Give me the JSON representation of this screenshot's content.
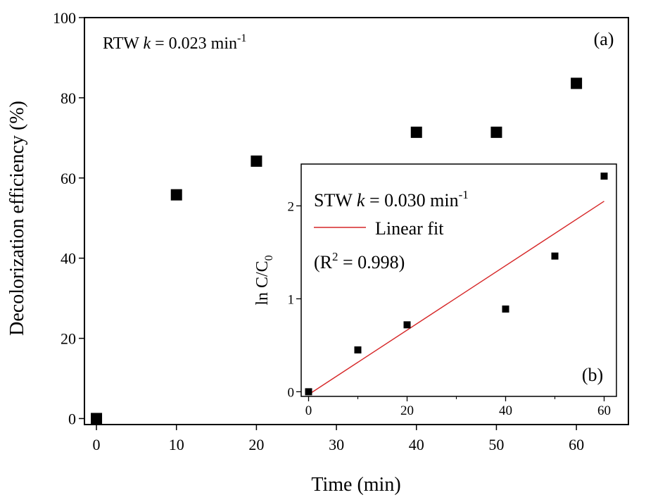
{
  "chart_data": [
    {
      "panel": "(a)",
      "type": "scatter",
      "xlabel": "Time (min)",
      "ylabel": "Decolorization efficiency (%)",
      "xlim": [
        -1.5,
        66.5
      ],
      "ylim": [
        -1.5,
        100
      ],
      "xticks": [
        0,
        10,
        20,
        30,
        40,
        50,
        60
      ],
      "yticks": [
        0,
        20,
        40,
        60,
        80,
        100
      ],
      "annotation": {
        "prefix": "RTW ",
        "k": "k",
        "value": " = 0.023 min",
        "sup": "-1"
      },
      "series": [
        {
          "x": [
            0,
            10,
            20,
            40,
            50,
            60
          ],
          "y": [
            0,
            55.8,
            64.2,
            71.4,
            71.4,
            83.6
          ]
        }
      ],
      "marker_color": "#000000",
      "grid": false
    },
    {
      "panel": "(b)",
      "type": "scatter",
      "ylabel": "ln C/C",
      "ylabel_sub": "0",
      "xlim": [
        -1.5,
        62.5
      ],
      "ylim": [
        -0.05,
        2.45
      ],
      "xticks": [
        0,
        20,
        40,
        60
      ],
      "xtick_labels": [
        "0",
        "20",
        "40",
        "60"
      ],
      "xtick_minor": [
        10,
        30,
        50
      ],
      "yticks": [
        0,
        1,
        2
      ],
      "annotation": {
        "prefix": "STW ",
        "k": "k",
        "value": " = 0.030 min",
        "sup": "-1"
      },
      "legend_label": "Linear fit",
      "r2": {
        "open": "(R",
        "sup": "2",
        "close": " = 0.998)"
      },
      "series": [
        {
          "x": [
            0,
            10,
            20,
            40,
            50,
            60
          ],
          "y": [
            0,
            0.45,
            0.72,
            0.89,
            1.46,
            2.32
          ]
        }
      ],
      "fit": {
        "x": [
          0,
          60
        ],
        "y": [
          -0.03,
          2.05
        ],
        "color": "#d62728"
      },
      "marker_color": "#000000",
      "grid": false
    }
  ]
}
